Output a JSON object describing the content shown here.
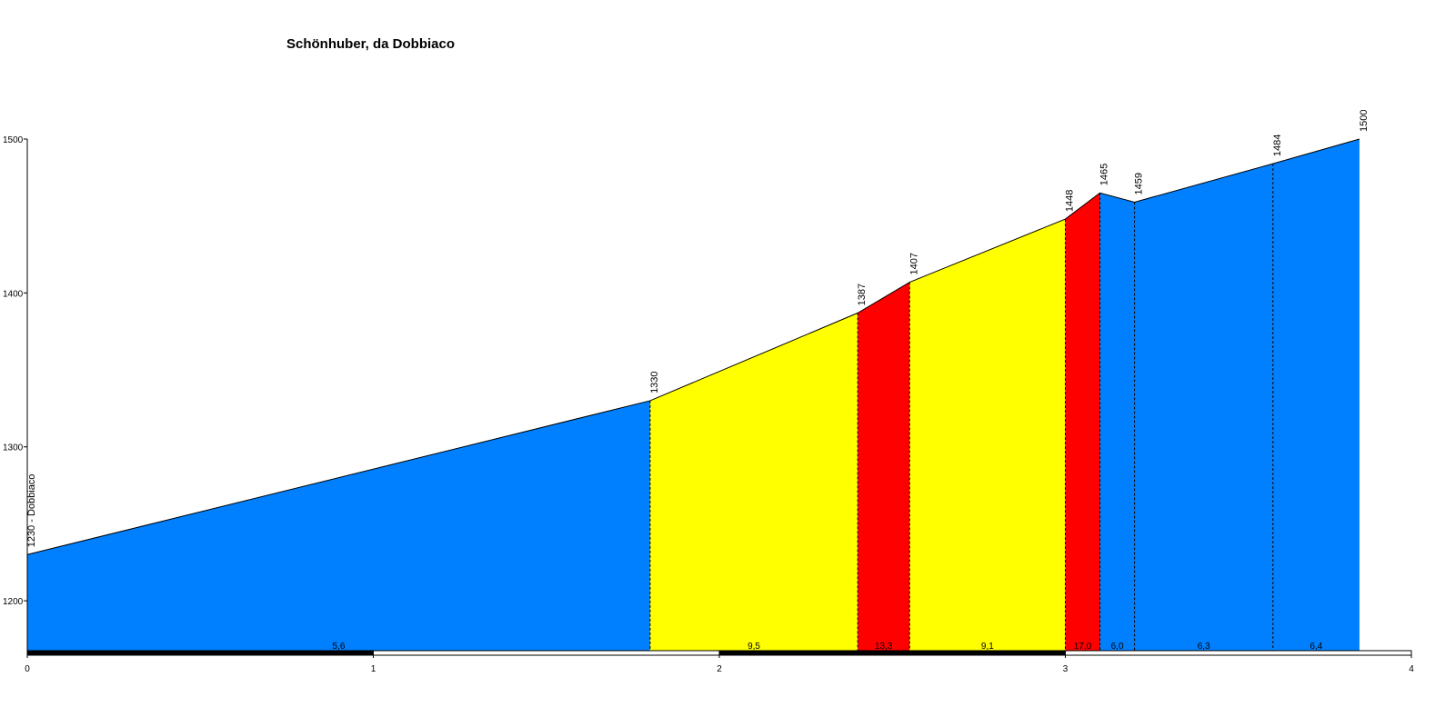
{
  "chart_data": {
    "type": "area",
    "title": "Schönhuber, da Dobbiaco",
    "x": [
      0,
      1.8,
      2.4,
      2.55,
      3.0,
      3.1,
      3.2,
      3.6,
      3.85
    ],
    "series": [
      {
        "values": [
          1230,
          1330,
          1387,
          1407,
          1448,
          1465,
          1459,
          1484,
          1500
        ],
        "value_labels": [
          "1230 - Dobbiaco",
          "1330",
          "1387",
          "1407",
          "1448",
          "1465",
          "1459",
          "1484",
          "1500"
        ]
      }
    ],
    "gradients": {
      "values": [
        5.6,
        9.5,
        13.3,
        9.1,
        17.0,
        6.0,
        6.3,
        6.4
      ],
      "value_labels": [
        "5,6",
        "9,5",
        "13,3",
        "9,1",
        "17,0",
        "6,0",
        "6,3",
        "6,4"
      ],
      "colors": [
        "#0080ff",
        "#ffff00",
        "#ff0000",
        "#ffff00",
        "#ff0000",
        "#0080ff",
        "#0080ff",
        "#0080ff"
      ]
    },
    "xlim": [
      0,
      4
    ],
    "ylim": [
      1167,
      1500
    ],
    "xticks": [
      0,
      1,
      2,
      3,
      4
    ],
    "yticks": [
      1200,
      1300,
      1400,
      1500
    ]
  }
}
